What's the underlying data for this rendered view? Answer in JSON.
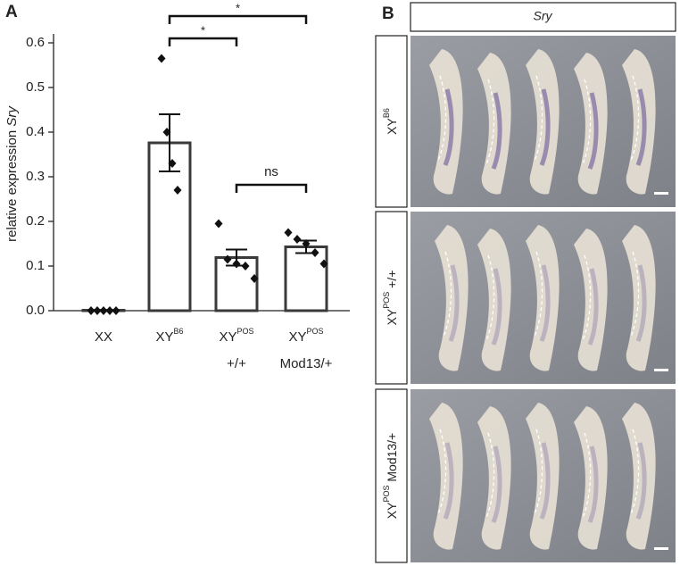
{
  "chart_data": {
    "type": "bar",
    "panel": "A",
    "ylabel": "relative expression ",
    "ylabel_italic": "Sry",
    "categories": [
      "XX",
      "XY",
      "XY",
      "XY"
    ],
    "category_superscripts": [
      null,
      "B6",
      "POS",
      "POS"
    ],
    "category_sublines": [
      null,
      null,
      "+/+",
      "Mod13/+"
    ],
    "values": [
      0.001,
      0.376,
      0.119,
      0.143
    ],
    "errors": [
      0,
      0.064,
      0.018,
      0.014
    ],
    "points": [
      [
        0,
        0,
        0,
        0,
        0
      ],
      [
        0.565,
        0.4,
        0.33,
        0.27
      ],
      [
        0.195,
        0.115,
        0.105,
        0.1,
        0.072
      ],
      [
        0.175,
        0.16,
        0.15,
        0.13,
        0.105
      ]
    ],
    "color": "#3a3a3a",
    "ylim": [
      0,
      0.62
    ],
    "yticks": [
      {
        "value": 0,
        "label": "0.0"
      },
      0.1,
      0.2,
      0.3,
      0.4,
      0.5,
      0.6
    ],
    "annotations": [
      {
        "text": "*",
        "between": [
          1,
          3
        ]
      },
      {
        "text": "*",
        "between": [
          1,
          2
        ]
      },
      {
        "text": "ns",
        "between": [
          2,
          3
        ]
      }
    ]
  },
  "panel_b": {
    "panel": "B",
    "header": "Sry",
    "rows": [
      {
        "label": "XY",
        "superscript": "B6",
        "suffix": ""
      },
      {
        "label": "XY",
        "superscript": "POS",
        "suffix": " +/+"
      },
      {
        "label": "XY",
        "superscript": "POS",
        "suffix": " Mod13/+"
      }
    ]
  }
}
